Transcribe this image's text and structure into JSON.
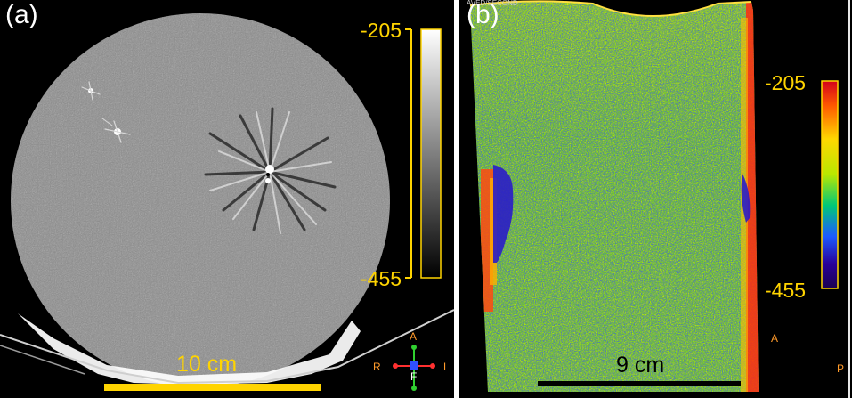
{
  "panel_a": {
    "label": "(a)",
    "colorbar": {
      "max_label": "-205",
      "min_label": "-455",
      "colormap": "grayscale",
      "label_color": "#ffd400"
    },
    "scale_bar": {
      "label": "10 cm",
      "color": "#ffd400"
    },
    "orientation": {
      "top": "A",
      "left": "R",
      "center": "F",
      "right": "L"
    }
  },
  "panel_b": {
    "label": "(b)",
    "header_text": "AVED/SECOND",
    "colorbar": {
      "max_label": "-205",
      "min_label": "-455",
      "colormap": "jet",
      "label_color": "#ffd400"
    },
    "scale_bar": {
      "label": "9 cm",
      "color": "#000000"
    },
    "side_marks": {
      "left": "A",
      "right": "P"
    }
  },
  "colors": {
    "accent_yellow": "#ffd400",
    "background": "#000000",
    "divider": "#ffffff"
  }
}
